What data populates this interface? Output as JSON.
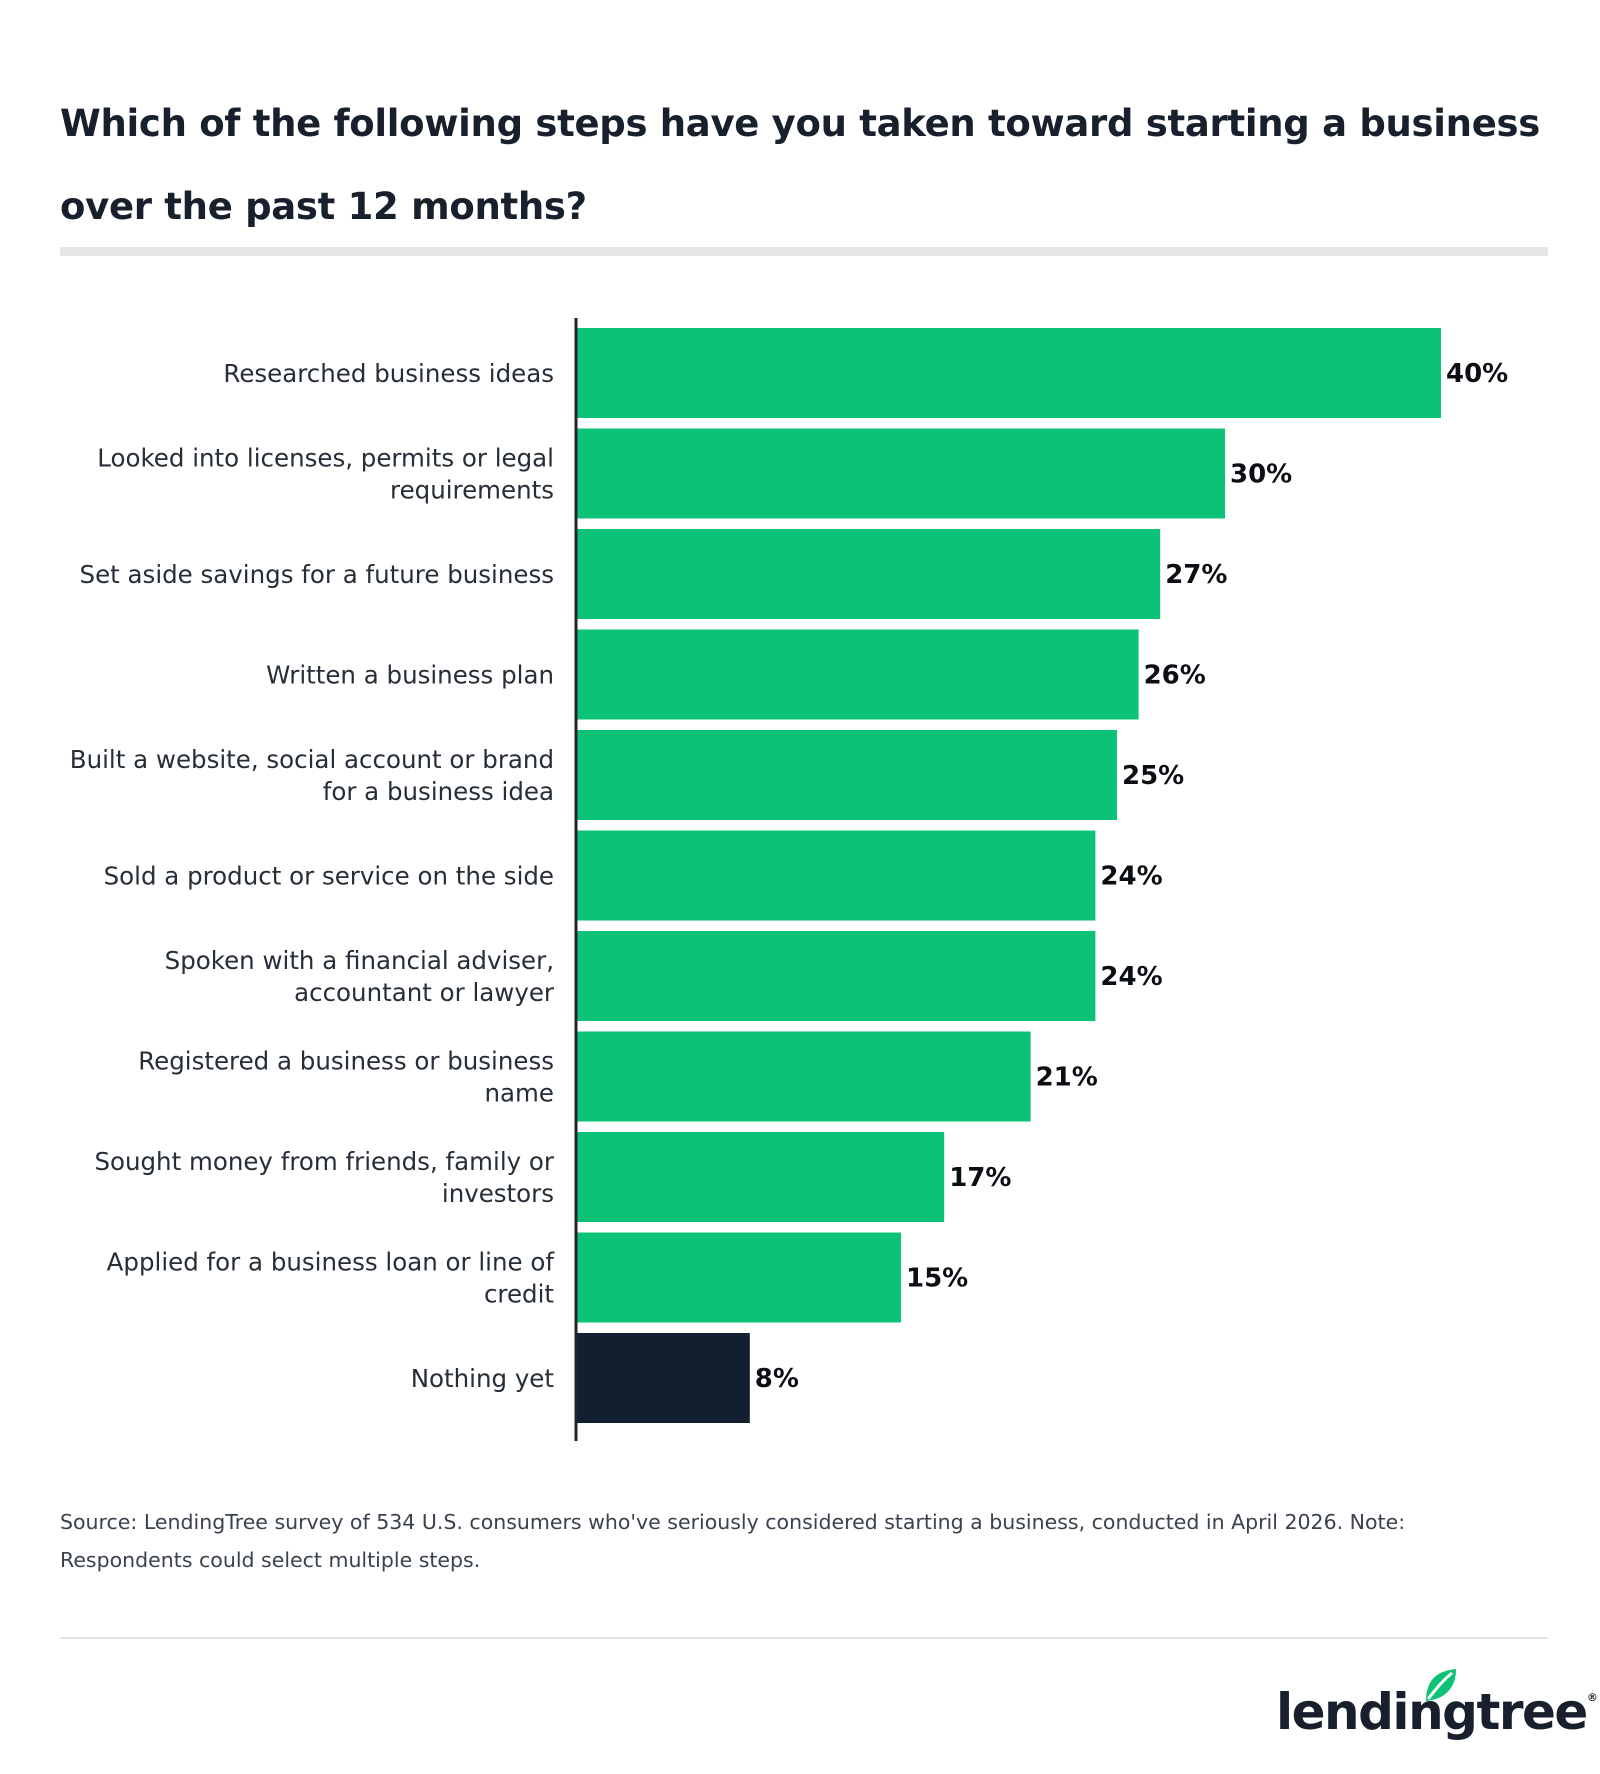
{
  "header": {
    "title": "Which of the following steps have you taken toward starting a business over the past 12 months?"
  },
  "chart_data": {
    "type": "bar",
    "orientation": "horizontal",
    "title": "Which of the following steps have you taken toward starting a business over the past 12 months?",
    "categories": [
      "Researched business ideas",
      "Looked into licenses, permits or legal requirements",
      "Set aside savings for a future business",
      "Written a business plan",
      "Built a website, social account or brand for a business idea",
      "Sold a product or service on the side",
      "Spoken with a financial adviser, accountant or lawyer",
      "Registered a business or business name",
      "Sought money from friends, family or investors",
      "Applied for a business loan or line of credit",
      "Nothing yet"
    ],
    "category_lines": [
      [
        "Researched business ideas"
      ],
      [
        "Looked into licenses, permits or legal",
        "requirements"
      ],
      [
        "Set aside savings for a future business"
      ],
      [
        "Written a business plan"
      ],
      [
        "Built a website, social account or brand",
        "for a business idea"
      ],
      [
        "Sold a product or service on the side"
      ],
      [
        "Spoken with a financial adviser,",
        "accountant or lawyer"
      ],
      [
        "Registered a business or business",
        "name"
      ],
      [
        "Sought money from friends, family or",
        "investors"
      ],
      [
        "Applied for a business loan or line of",
        "credit"
      ],
      [
        "Nothing yet"
      ]
    ],
    "values": [
      40,
      30,
      27,
      26,
      25,
      24,
      24,
      21,
      17,
      15,
      8
    ],
    "value_labels": [
      "40%",
      "30%",
      "27%",
      "26%",
      "25%",
      "24%",
      "24%",
      "21%",
      "17%",
      "15%",
      "8%"
    ],
    "colors": [
      "#0cc277",
      "#0cc277",
      "#0cc277",
      "#0cc277",
      "#0cc277",
      "#0cc277",
      "#0cc277",
      "#0cc277",
      "#0cc277",
      "#0cc277",
      "#121f30"
    ],
    "xlim": [
      0,
      40
    ],
    "grid": false,
    "legend": "none",
    "xlabel": "",
    "ylabel": ""
  },
  "footer": {
    "source": "Source: LendingTree survey of 534 U.S. consumers who've seriously considered starting a business, conducted in April 2026. Note: Respondents could select multiple steps.",
    "logo_text": "lendingtree",
    "logo_colors": {
      "text": "#17202c",
      "leaf": "#0cc277"
    }
  }
}
